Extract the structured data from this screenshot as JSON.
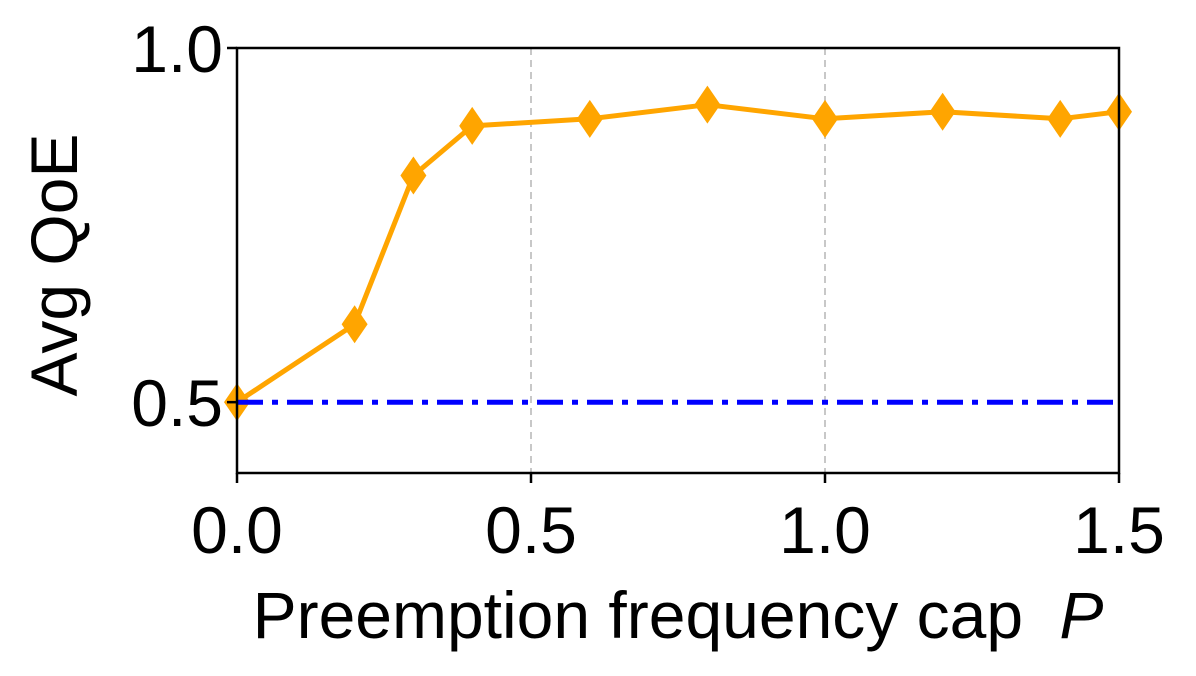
{
  "chart_data": {
    "type": "line",
    "title": "",
    "xlabel": "Preemption frequency cap",
    "xlabel_var": "P",
    "ylabel": "Avg QoE",
    "xlim": [
      0.0,
      1.5
    ],
    "ylim": [
      0.4,
      1.0
    ],
    "xticks": [
      0.0,
      0.5,
      1.0,
      1.5
    ],
    "xtick_labels": [
      "0.0",
      "0.5",
      "1.0",
      "1.5"
    ],
    "yticks": [
      0.5,
      1.0
    ],
    "ytick_labels": [
      "0.5",
      "1.0"
    ],
    "grid": "x-dashed",
    "legend": "none",
    "series": [
      {
        "style": "solid",
        "marker": "diamond",
        "color": "#FFA500",
        "x": [
          0.0,
          0.2,
          0.3,
          0.4,
          0.6,
          0.8,
          1.0,
          1.2,
          1.4,
          1.5
        ],
        "y": [
          0.5,
          0.61,
          0.82,
          0.89,
          0.9,
          0.92,
          0.9,
          0.91,
          0.9,
          0.91
        ]
      },
      {
        "style": "dashdot",
        "marker": "none",
        "color": "#0000FF",
        "x": [
          0.0,
          1.5
        ],
        "y": [
          0.5,
          0.5
        ]
      }
    ]
  }
}
